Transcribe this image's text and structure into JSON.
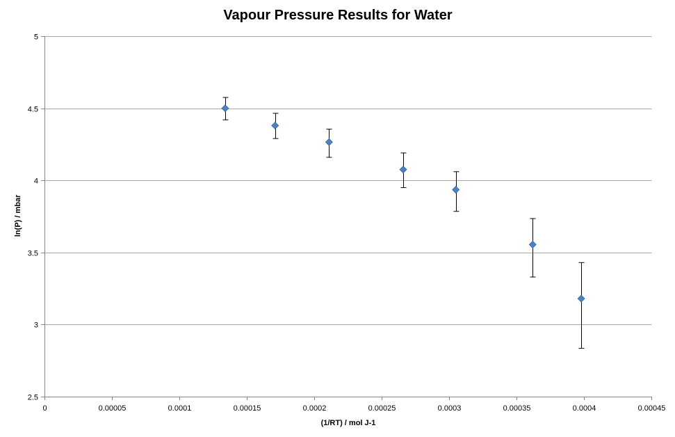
{
  "chart_data": {
    "type": "scatter",
    "title": "Vapour Pressure Results for Water",
    "xlabel": "(1/RT)  / mol J-1",
    "ylabel": "ln(P) / mbar",
    "xlim": [
      0,
      0.00045
    ],
    "ylim": [
      2.5,
      5
    ],
    "x_ticks": [
      0,
      5e-05,
      0.0001,
      0.00015,
      0.0002,
      0.00025,
      0.0003,
      0.00035,
      0.0004,
      0.00045
    ],
    "x_tick_labels": [
      "0",
      "0.00005",
      "0.0001",
      "0.00015",
      "0.0002",
      "0.00025",
      "0.0003",
      "0.00035",
      "0.0004",
      "0.00045"
    ],
    "y_ticks": [
      2.5,
      3,
      3.5,
      4,
      4.5,
      5
    ],
    "y_tick_labels": [
      "2.5",
      "3",
      "3.5",
      "4",
      "4.5",
      "5"
    ],
    "grid": {
      "horizontal": true,
      "vertical": false
    },
    "legend": "none",
    "marker": "diamond",
    "marker_color": "#4F81BD",
    "errorbar_color": "#000000",
    "gridline_color": "#A6A6A6",
    "series": [
      {
        "points": [
          {
            "x": 0.000134,
            "y": 4.5,
            "y_low": 4.42,
            "y_high": 4.575
          },
          {
            "x": 0.000171,
            "y": 4.38,
            "y_low": 4.29,
            "y_high": 4.465
          },
          {
            "x": 0.000211,
            "y": 4.265,
            "y_low": 4.16,
            "y_high": 4.355
          },
          {
            "x": 0.000266,
            "y": 4.075,
            "y_low": 3.95,
            "y_high": 4.19
          },
          {
            "x": 0.000305,
            "y": 3.935,
            "y_low": 3.785,
            "y_high": 4.06
          },
          {
            "x": 0.000362,
            "y": 3.555,
            "y_low": 3.33,
            "y_high": 3.735
          },
          {
            "x": 0.000398,
            "y": 3.18,
            "y_low": 2.835,
            "y_high": 3.43
          }
        ]
      }
    ]
  }
}
